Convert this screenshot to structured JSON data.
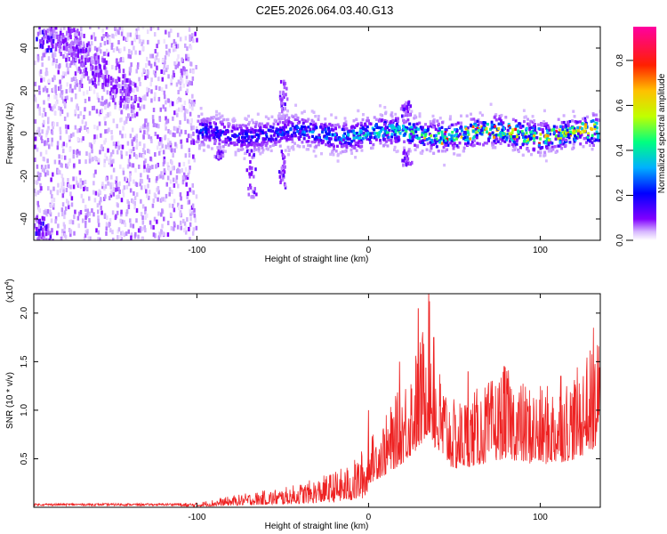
{
  "title": "C2E5.2026.064.03.40.G13",
  "chart_data": [
    {
      "type": "heatmap",
      "xlabel": "Height of straight line (km)",
      "ylabel": "Frequency (Hz)",
      "xlim": [
        -195,
        135
      ],
      "ylim": [
        -50,
        50
      ],
      "x_ticks": [
        "-100",
        "0",
        "100"
      ],
      "y_ticks": [
        "-40",
        "-20",
        "0",
        "20",
        "40"
      ],
      "colorbar": {
        "label": "Normalized spectral amplitude",
        "range": [
          0,
          0.95
        ],
        "ticks": [
          "0.0",
          "0.2",
          "0.4",
          "0.6",
          "0.8"
        ],
        "colormap": [
          "#ffffff",
          "#c8a0ff",
          "#8000ff",
          "#0000ff",
          "#00c0ff",
          "#00ff80",
          "#c0ff00",
          "#ffc000",
          "#ff0000",
          "#ff00a0"
        ]
      },
      "features": {
        "noise_region_x": [
          -195,
          -100
        ],
        "band_center_hz": 0,
        "band_halfwidth_hz": 8,
        "diagonal_stripe": {
          "from": [
            -185,
            48
          ],
          "to": [
            -135,
            15
          ]
        },
        "spikes": [
          {
            "x": -50,
            "f_top": 25
          },
          {
            "x": -50,
            "f_bottom": -26
          },
          {
            "x": -68,
            "f_bottom": -30
          },
          {
            "x": 22,
            "f_top": 15
          },
          {
            "x": 22,
            "f_bottom": -15
          },
          {
            "x": -87,
            "f_bottom": -12
          }
        ]
      }
    },
    {
      "type": "line",
      "xlabel": "Height of straight line (km)",
      "ylabel": "SNR (10 * v/v)",
      "y_multiplier": "(x10",
      "y_multiplier_exp": "4",
      "xlim": [
        -195,
        135
      ],
      "ylim": [
        0,
        2.2
      ],
      "x_ticks": [
        "-100",
        "0",
        "100"
      ],
      "y_ticks": [
        "0.5",
        "1.0",
        "1.5",
        "2.0"
      ],
      "series": [
        {
          "color": "#ee2222",
          "envelope": {
            "x": [
              -195,
              -120,
              -100,
              -85,
              -70,
              -50,
              -30,
              -10,
              0,
              10,
              20,
              30,
              35,
              40,
              50,
              60,
              70,
              80,
              90,
              100,
              110,
              120,
              135
            ],
            "y": [
              0.04,
              0.04,
              0.05,
              0.1,
              0.15,
              0.2,
              0.3,
              0.45,
              0.7,
              0.95,
              1.3,
              1.75,
              2.2,
              1.5,
              1.1,
              1.2,
              1.3,
              1.45,
              1.3,
              1.25,
              1.3,
              1.4,
              1.8
            ]
          },
          "peaks": [
            {
              "x": 29,
              "y": 2.05
            },
            {
              "x": 35,
              "y": 2.2
            },
            {
              "x": 38,
              "y": 1.75
            },
            {
              "x": 18,
              "y": 1.5
            },
            {
              "x": 79,
              "y": 1.45
            },
            {
              "x": 131,
              "y": 1.85
            },
            {
              "x": 127,
              "y": 1.4
            },
            {
              "x": 0,
              "y": 1.0
            },
            {
              "x": 58,
              "y": 1.4
            },
            {
              "x": 112,
              "y": 1.35
            }
          ]
        }
      ]
    }
  ]
}
